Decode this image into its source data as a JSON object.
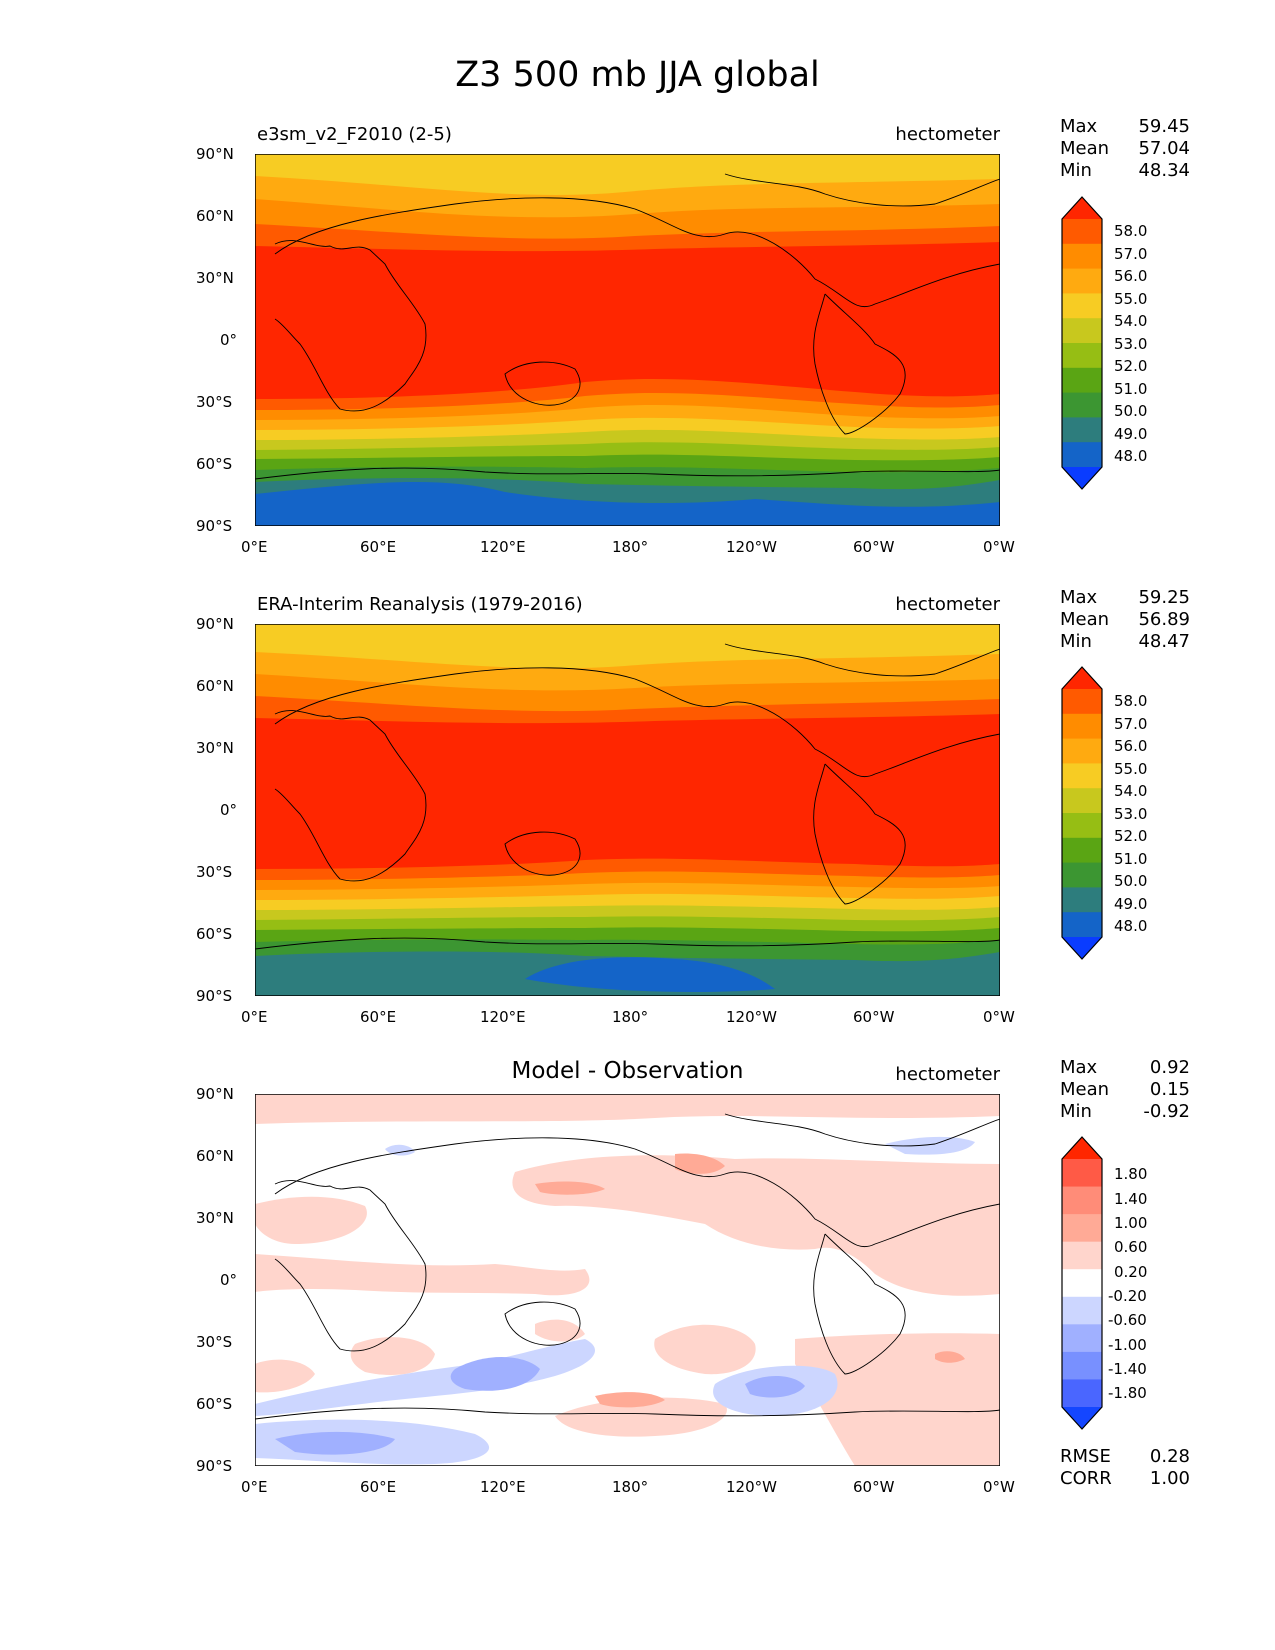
{
  "title": "Z3 500 mb JJA global",
  "x_ticks": [
    "0°E",
    "60°E",
    "120°E",
    "180°",
    "120°W",
    "60°W",
    "0°W"
  ],
  "y_ticks": [
    "90°N",
    "60°N",
    "30°N",
    "0°",
    "30°S",
    "60°S",
    "90°S"
  ],
  "panels": [
    {
      "left_label": "e3sm_v2_F2010 (2-5)",
      "units": "hectometer",
      "stats": [
        {
          "label": "Max",
          "value": "59.45"
        },
        {
          "label": "Mean",
          "value": "57.04"
        },
        {
          "label": "Min",
          "value": "48.34"
        }
      ],
      "colorbar": {
        "labels": [
          "58.0",
          "57.0",
          "56.0",
          "55.0",
          "54.0",
          "53.0",
          "52.0",
          "51.0",
          "50.0",
          "49.0",
          "48.0"
        ],
        "colors": [
          "#ff2600",
          "#ff5a00",
          "#ff8c00",
          "#ffaa10",
          "#f7cc23",
          "#c8c81e",
          "#96be14",
          "#5aa514",
          "#3c9632",
          "#2d7d7d",
          "#1464c8",
          "#0a3cff"
        ]
      }
    },
    {
      "left_label": "ERA-Interim Reanalysis (1979-2016)",
      "units": "hectometer",
      "stats": [
        {
          "label": "Max",
          "value": "59.25"
        },
        {
          "label": "Mean",
          "value": "56.89"
        },
        {
          "label": "Min",
          "value": "48.47"
        }
      ],
      "colorbar": {
        "labels": [
          "58.0",
          "57.0",
          "56.0",
          "55.0",
          "54.0",
          "53.0",
          "52.0",
          "51.0",
          "50.0",
          "49.0",
          "48.0"
        ],
        "colors": [
          "#ff2600",
          "#ff5a00",
          "#ff8c00",
          "#ffaa10",
          "#f7cc23",
          "#c8c81e",
          "#96be14",
          "#5aa514",
          "#3c9632",
          "#2d7d7d",
          "#1464c8",
          "#0a3cff"
        ]
      }
    },
    {
      "center_label": "Model - Observation",
      "units": "hectometer",
      "stats": [
        {
          "label": "Max",
          "value": "0.92"
        },
        {
          "label": "Mean",
          "value": "0.15"
        },
        {
          "label": "Min",
          "value": "-0.92"
        }
      ],
      "extra_stats": [
        {
          "label": "RMSE",
          "value": "0.28"
        },
        {
          "label": "CORR",
          "value": "1.00"
        }
      ],
      "colorbar": {
        "labels": [
          "1.80",
          "1.40",
          "1.00",
          "0.60",
          "0.20",
          "-0.20",
          "-0.60",
          "-1.00",
          "-1.40",
          "-1.80"
        ],
        "colors": [
          "#ff2600",
          "#ff5a46",
          "#ff8c78",
          "#ffaa96",
          "#ffd5cc",
          "#ffffff",
          "#ccd6ff",
          "#a0b0ff",
          "#7890ff",
          "#4a66ff",
          "#1446ff"
        ]
      }
    }
  ]
}
